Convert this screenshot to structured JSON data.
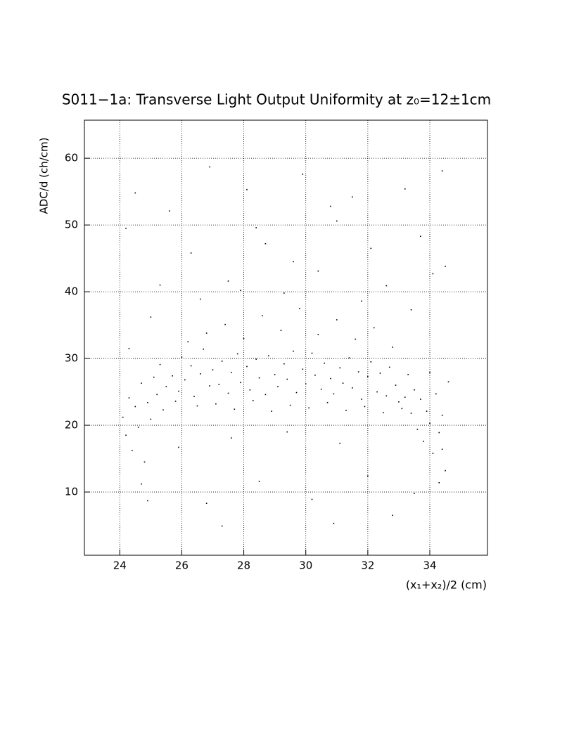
{
  "chart_data": {
    "type": "scatter",
    "title": "S011−1a: Transverse Light Output Uniformity at z₀=12±1cm",
    "x_label": "(x₁+x₂)/2 (cm)",
    "y_label": "ADC/d (ch/cm)",
    "color": "#000000",
    "grid": true,
    "xlim": [
      22.86,
      35.86
    ],
    "ylim": [
      0.53,
      65.7
    ],
    "xticks": [
      24,
      26,
      28,
      30,
      32,
      34
    ],
    "yticks": [
      10,
      20,
      30,
      40,
      50,
      60
    ],
    "x": [
      24.1,
      24.2,
      24.3,
      24.4,
      24.5,
      24.6,
      24.7,
      24.8,
      24.9,
      25.0,
      25.1,
      25.2,
      25.3,
      25.4,
      25.5,
      24.2,
      24.5,
      24.7,
      24.3,
      25.0,
      24.9,
      25.3,
      25.7,
      25.9,
      26.0,
      26.1,
      26.3,
      26.4,
      26.6,
      26.7,
      26.9,
      27.0,
      27.2,
      27.3,
      27.5,
      27.6,
      27.8,
      27.9,
      28.1,
      28.2,
      28.4,
      28.5,
      28.7,
      28.8,
      29.0,
      29.1,
      29.3,
      29.4,
      29.6,
      29.7,
      29.9,
      30.0,
      30.2,
      30.3,
      30.5,
      30.6,
      30.8,
      30.9,
      31.1,
      31.2,
      31.4,
      31.5,
      31.7,
      31.8,
      32.0,
      32.1,
      32.3,
      32.4,
      32.6,
      32.7,
      32.9,
      33.0,
      25.8,
      26.2,
      26.5,
      26.8,
      27.1,
      27.4,
      27.7,
      28.0,
      28.3,
      28.6,
      28.9,
      29.2,
      29.5,
      29.8,
      30.1,
      30.4,
      30.7,
      31.0,
      31.3,
      31.6,
      31.9,
      32.2,
      32.5,
      32.8,
      33.1,
      25.6,
      26.3,
      26.9,
      27.5,
      28.1,
      28.7,
      29.3,
      29.9,
      30.4,
      31.0,
      31.5,
      32.1,
      32.6,
      33.2,
      33.7,
      34.1,
      26.6,
      27.9,
      29.6,
      31.8,
      33.4,
      30.8,
      28.4,
      25.9,
      26.8,
      27.6,
      28.5,
      29.4,
      30.2,
      31.1,
      32.0,
      32.8,
      33.5,
      27.3,
      30.9,
      33.2,
      33.3,
      33.4,
      33.5,
      33.6,
      33.7,
      33.8,
      33.9,
      34.0,
      34.1,
      34.2,
      34.3,
      34.4,
      34.5,
      34.3,
      34.0,
      34.4,
      34.6,
      34.5,
      34.4
    ],
    "values": [
      21.2,
      18.5,
      24.1,
      16.2,
      22.8,
      19.7,
      26.3,
      14.5,
      23.4,
      20.9,
      27.2,
      24.6,
      29.1,
      22.3,
      25.8,
      49.5,
      54.8,
      11.2,
      31.5,
      36.2,
      8.7,
      41.0,
      27.4,
      25.1,
      30.2,
      26.8,
      28.9,
      24.3,
      27.7,
      31.4,
      25.9,
      28.3,
      26.1,
      29.6,
      24.8,
      27.9,
      30.7,
      26.4,
      28.8,
      25.3,
      29.9,
      27.1,
      24.6,
      30.4,
      27.6,
      25.8,
      29.2,
      26.9,
      31.1,
      24.9,
      28.4,
      26.2,
      30.8,
      27.5,
      25.4,
      29.3,
      27.0,
      24.7,
      28.6,
      26.3,
      30.1,
      25.6,
      28.0,
      23.9,
      27.3,
      29.5,
      25.0,
      27.8,
      24.4,
      28.7,
      26.0,
      23.5,
      23.6,
      32.5,
      22.9,
      33.8,
      23.2,
      35.1,
      22.4,
      33.0,
      23.7,
      36.4,
      22.1,
      34.2,
      23.0,
      37.5,
      22.6,
      33.6,
      23.4,
      35.8,
      22.2,
      32.9,
      22.8,
      34.6,
      21.9,
      31.7,
      22.5,
      52.1,
      45.8,
      58.7,
      41.6,
      55.3,
      47.2,
      39.8,
      57.6,
      43.1,
      50.6,
      54.2,
      46.5,
      40.9,
      55.4,
      48.3,
      42.7,
      38.9,
      40.2,
      44.5,
      38.6,
      37.3,
      52.8,
      49.6,
      16.7,
      8.3,
      18.1,
      11.6,
      19.0,
      8.9,
      17.3,
      12.4,
      6.5,
      9.8,
      4.9,
      5.3,
      24.2,
      27.6,
      21.8,
      25.3,
      19.4,
      23.9,
      17.6,
      22.1,
      20.3,
      15.8,
      24.7,
      18.9,
      21.5,
      13.2,
      11.4,
      27.9,
      16.4,
      26.5,
      43.8,
      58.1
    ]
  }
}
